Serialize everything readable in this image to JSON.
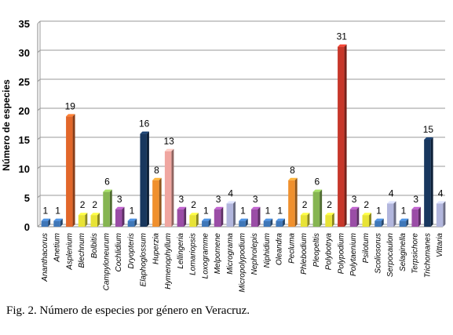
{
  "chart_data": {
    "type": "bar",
    "ylabel": "Número de especies",
    "xlabel": "",
    "ylim": [
      0,
      35
    ],
    "yticks": [
      0,
      5,
      10,
      15,
      20,
      25,
      30,
      35
    ],
    "grid": true,
    "legend": "none",
    "categories": [
      "Ananthacorus",
      "Anetium",
      "Asplenium",
      "Blechnum",
      "Bolbitis",
      "Campyloneurum",
      "Cochlidium",
      "Dryopteris",
      "Elaphoglossum",
      "Huperzia",
      "Hymenophyllum",
      "Lellingeria",
      "Lomariopsis",
      "Loxogramme",
      "Melpomene",
      "Micrograma",
      "Micropolypodium",
      "Nephrolepis",
      "Niphidium",
      "Oleandra",
      "Pecluma",
      "Phlebodium",
      "Pleopeltis",
      "Polybotrya",
      "Polypodium",
      "Polytaenium",
      "Psilotum",
      "Scoliosorus",
      "Serpocaulon",
      "Selaginella",
      "Terpsichore",
      "Trichomanes",
      "Vittaria"
    ],
    "values": [
      1,
      1,
      19,
      2,
      2,
      6,
      3,
      1,
      16,
      8,
      13,
      3,
      2,
      1,
      3,
      4,
      1,
      3,
      1,
      1,
      8,
      2,
      6,
      2,
      31,
      3,
      2,
      1,
      4,
      1,
      3,
      15,
      4
    ],
    "colors": [
      "#3f77b8",
      "#3f77b8",
      "#e2672a",
      "#e8e336",
      "#e8e336",
      "#86b552",
      "#9a4da6",
      "#3f77b8",
      "#18375e",
      "#f0902d",
      "#f0a6a0",
      "#9a4da6",
      "#e8e336",
      "#3f77b8",
      "#9a4da6",
      "#b2b6dd",
      "#3f77b8",
      "#9a4da6",
      "#3f77b8",
      "#3f77b8",
      "#f0902d",
      "#e8e336",
      "#86b552",
      "#e8e336",
      "#c7372a",
      "#9a4da6",
      "#e8e336",
      "#3f77b8",
      "#b2b6dd",
      "#3f77b8",
      "#9a4da6",
      "#18375e",
      "#b2b6dd"
    ]
  },
  "caption": "Fig. 2. Número de especies por género en Veracruz."
}
